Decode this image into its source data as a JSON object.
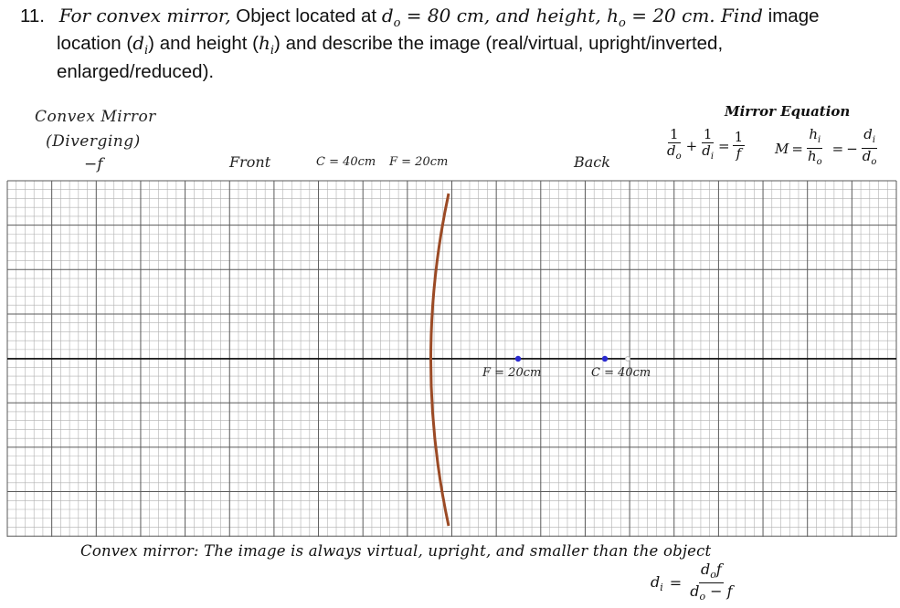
{
  "question": {
    "number": "11.",
    "p1": "For convex mirror,",
    "p2": " Object located at ",
    "p3": "d",
    "p3sub": "o",
    "p4": " = 80 cm, and height, h",
    "p4sub": "o",
    "p5": " = 20 cm. Find",
    "p6": " image",
    "line2a": "location (",
    "line2b": "d",
    "line2bsub": "i",
    "line2c": ") and height (",
    "line2d": "h",
    "line2dsub": "i",
    "line2e": ") and describe the image (real/virtual, upright/inverted,",
    "line3": "enlarged/reduced)."
  },
  "labels": {
    "mirror_title": "Convex Mirror",
    "mirror_sub": "(Diverging)",
    "mirror_f": "−f",
    "front": "Front",
    "c_eq": "C = 40cm",
    "f_eq": "F = 20cm",
    "back": "Back",
    "eq_title": "Mirror Equation",
    "axis_f": "F = 20cm",
    "axis_c": "C = 40cm"
  },
  "equation": {
    "one": "1",
    "d_o": "d",
    "d_o_sub": "o",
    "d_i": "d",
    "d_i_sub": "i",
    "f": "f",
    "plus": "+",
    "equals": "=",
    "M": "M",
    "h_i": "h",
    "h_i_sub": "i",
    "h_o": "h",
    "h_o_sub": "o",
    "minus": "−"
  },
  "footer": {
    "statement_a": "Convex mirror",
    "statement_b": ": The image is always virtual, upright, and smaller than the object",
    "di_lhs": "d",
    "di_lhs_sub": "i",
    "eq": "=",
    "num": "d",
    "num_sub": "o",
    "num_f": "f",
    "den": "d",
    "den_sub": "o",
    "den_rest": " − f"
  },
  "colors": {
    "mirror": "#9b4a25",
    "point": "#2b2bd0",
    "grid": "#8a8a8a",
    "axis": "#000000"
  }
}
